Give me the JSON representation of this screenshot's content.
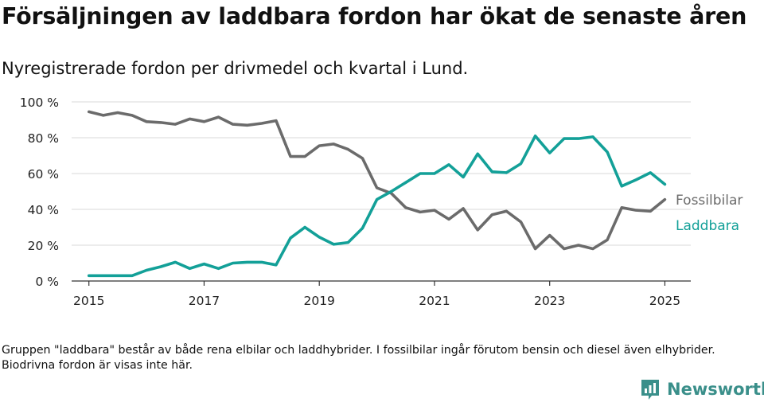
{
  "header": {
    "title": "Försäljningen av laddbara fordon har ökat de senaste åren",
    "subtitle": "Nyregistrerade fordon per drivmedel och kvartal i Lund."
  },
  "footer": {
    "note": "Gruppen \"laddbara\" består av både rena elbilar och laddhybrider. I fossilbilar ingår förutom bensin och diesel även elhybrider. Biodrivna fordon är visas inte här.",
    "brand": "Newsworthy"
  },
  "colors": {
    "fossil": "#6b6b6b",
    "laddbara": "#13a098",
    "grid": "#d9d9d9",
    "axis": "#333333",
    "brand": "#3a8f8a"
  },
  "chart_data": {
    "type": "line",
    "xlim": [
      2014.7,
      2025.45
    ],
    "ylim": [
      0,
      100
    ],
    "x_ticks": [
      2015,
      2017,
      2019,
      2021,
      2023,
      2025
    ],
    "x_tick_labels": [
      "2015",
      "2017",
      "2019",
      "2021",
      "2023",
      "2025"
    ],
    "y_ticks": [
      0,
      20,
      40,
      60,
      80,
      100
    ],
    "y_tick_labels": [
      "0 %",
      "20 %",
      "40 %",
      "60 %",
      "80 %",
      "100 %"
    ],
    "grid": true,
    "legend_position": "right, at line ends",
    "x": [
      2015.0,
      2015.25,
      2015.5,
      2015.75,
      2016.0,
      2016.25,
      2016.5,
      2016.75,
      2017.0,
      2017.25,
      2017.5,
      2017.75,
      2018.0,
      2018.25,
      2018.5,
      2018.75,
      2019.0,
      2019.25,
      2019.5,
      2019.75,
      2020.0,
      2020.25,
      2020.5,
      2020.75,
      2021.0,
      2021.25,
      2021.5,
      2021.75,
      2022.0,
      2022.25,
      2022.5,
      2022.75,
      2023.0,
      2023.25,
      2023.5,
      2023.75,
      2024.0,
      2024.25,
      2024.5,
      2024.75,
      2025.0
    ],
    "series": [
      {
        "name": "Fossilbilar",
        "color": "#6b6b6b",
        "values": [
          94.5,
          92.5,
          94,
          92.5,
          89,
          88.5,
          87.5,
          90.5,
          89,
          91.5,
          87.5,
          87,
          88,
          89.5,
          69.5,
          69.5,
          75.5,
          76.5,
          73.5,
          68.5,
          52,
          49,
          41,
          38.5,
          39.5,
          34.5,
          40.5,
          28.5,
          37,
          39,
          33,
          18,
          25.5,
          18,
          20,
          18,
          23,
          41,
          39.5,
          39,
          45.5
        ]
      },
      {
        "name": "Laddbara",
        "color": "#13a098",
        "values": [
          3,
          3,
          3,
          3,
          6,
          8,
          10.5,
          7,
          9.5,
          7,
          10,
          10.5,
          10.5,
          9,
          24,
          30,
          24.5,
          20.5,
          21.5,
          29.5,
          45.5,
          50,
          55,
          60,
          60,
          65,
          58,
          71,
          61,
          60.5,
          65.5,
          81,
          71.5,
          79.5,
          79.5,
          80.5,
          72,
          53,
          56.5,
          60.5,
          54
        ]
      }
    ]
  }
}
